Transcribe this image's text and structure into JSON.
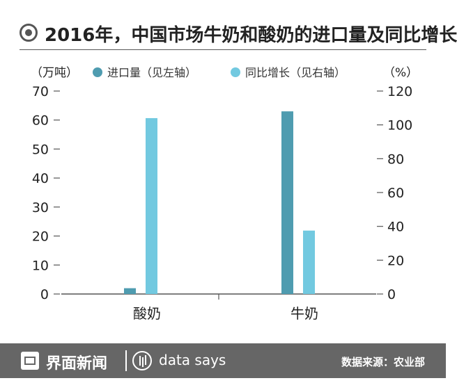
{
  "header": {
    "title": "2016年，中国市场牛奶和酸奶的进口量及同比增长"
  },
  "chart_data": {
    "type": "bar",
    "title": "2016年，中国市场牛奶和酸奶的进口量及同比增长",
    "categories": [
      "酸奶",
      "牛奶"
    ],
    "series": [
      {
        "name": "进口量（见左轴）",
        "axis": "left",
        "color": "#4f9cb0",
        "values": [
          2,
          63
        ]
      },
      {
        "name": "同比增长（见右轴）",
        "axis": "right",
        "color": "#72c9e0",
        "values": [
          104,
          37.5
        ]
      }
    ],
    "y_left": {
      "unit": "（万吨）",
      "min": 0,
      "max": 70,
      "ticks": [
        0,
        10,
        20,
        30,
        40,
        50,
        60,
        70
      ]
    },
    "y_right": {
      "unit": "（%）",
      "min": 0,
      "max": 120,
      "ticks": [
        0,
        20,
        40,
        60,
        80,
        100,
        120
      ]
    },
    "legend_position": "top",
    "grid": false
  },
  "footer": {
    "brand": "界面新闻",
    "logo_icon": "jiemian-logo-icon",
    "datasays_icon": "data-says-icon",
    "datasays": "data says",
    "source": "数据来源：农业部"
  }
}
